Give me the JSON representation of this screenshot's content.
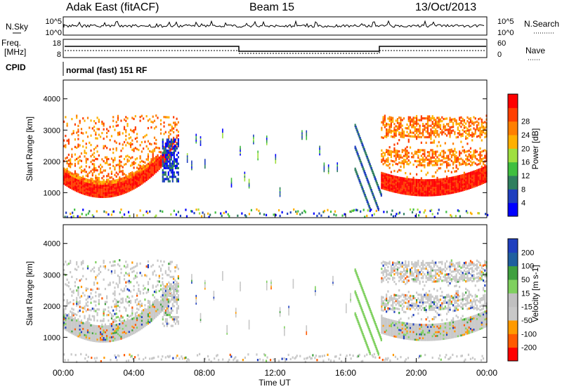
{
  "header": {
    "station": "Adak East (fitACF)",
    "beam": "Beam 15",
    "date": "13/Oct/2013"
  },
  "panels": {
    "nsky_label": "N.Sky",
    "nsearch_label": "N.Search",
    "noise_ticks": [
      "10^5",
      "10^0"
    ],
    "freq_label_1": "Freq.",
    "freq_label_2": "[MHz]",
    "freq_ticks": [
      "18",
      "8"
    ],
    "nave_label": "Nave",
    "nave_ticks": [
      "60",
      "0"
    ],
    "cpid_label": "CPID",
    "cpid_text": "normal (fast) 151 RF"
  },
  "x_axis": {
    "title": "Time UT",
    "ticks": [
      "00:00",
      "04:00",
      "08:00",
      "12:00",
      "16:00",
      "20:00",
      "00:00"
    ]
  },
  "colors": {
    "power": [
      "#0000ff",
      "#1f3fbf",
      "#2f7f5f",
      "#3fbf3f",
      "#9fdf3f",
      "#ffb000",
      "#ff7f00",
      "#ff3f00",
      "#ff0000"
    ],
    "velocity": [
      "#ff0000",
      "#ff5a00",
      "#ff9a00",
      "#c8c8c8",
      "#c0c0c0",
      "#7fd05f",
      "#3fa03f",
      "#1f5f9f",
      "#1f3fbf"
    ]
  },
  "chart_data": [
    {
      "type": "heatmap",
      "title": "Power",
      "xlabel": "Time UT",
      "ylabel": "Slant Range [km]",
      "ylim": [
        200,
        4600
      ],
      "y_ticks": [
        1000,
        2000,
        3000,
        4000
      ],
      "colorbar_label": "Power [dB]",
      "colorbar_ticks": [
        4,
        8,
        12,
        16,
        20,
        24,
        28
      ],
      "regions": [
        {
          "t_start_h": 0.0,
          "t_end_h": 6.5,
          "range_km": [
            800,
            3500
          ],
          "level": "high"
        },
        {
          "t_start_h": 16.5,
          "t_end_h": 18.0,
          "range_km": [
            700,
            3300
          ],
          "level": "low"
        },
        {
          "t_start_h": 18.0,
          "t_end_h": 24.0,
          "range_km": [
            850,
            3500
          ],
          "level": "high"
        }
      ]
    },
    {
      "type": "heatmap",
      "title": "Velocity",
      "xlabel": "Time UT",
      "ylabel": "Slant Range [km]",
      "ylim": [
        200,
        4600
      ],
      "y_ticks": [
        1000,
        2000,
        3000,
        4000
      ],
      "colorbar_label": "Velocity [m s-1]",
      "colorbar_ticks": [
        200,
        100,
        50,
        15,
        -15,
        -50,
        -100,
        -200
      ]
    }
  ]
}
